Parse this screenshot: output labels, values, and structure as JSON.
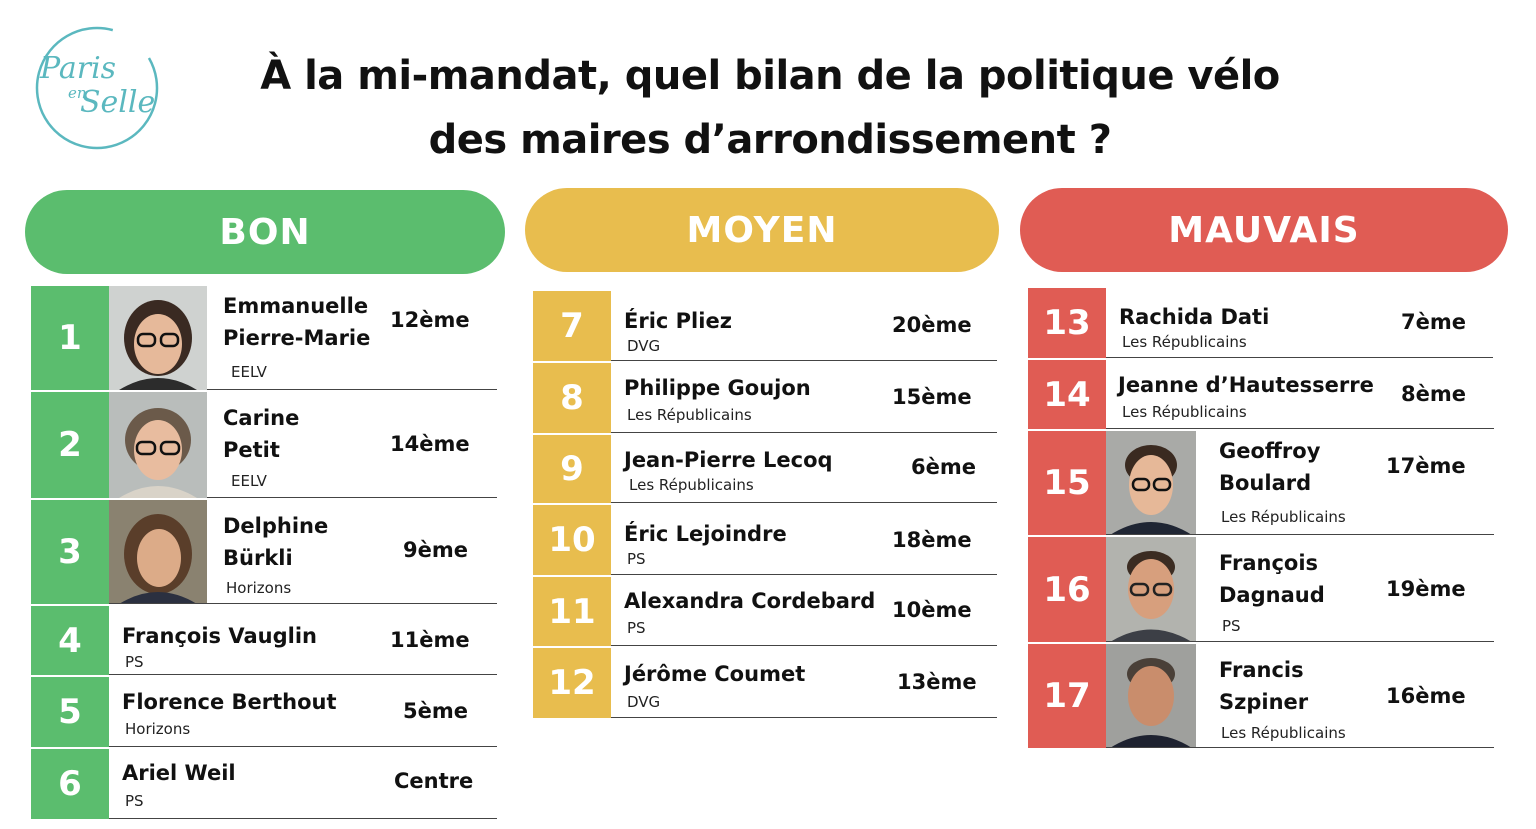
{
  "logo": {
    "line1": "Paris",
    "line2": "en",
    "line3": "Selle",
    "color": "#5bb8bf"
  },
  "title": {
    "line1": "À la mi-mandat, quel bilan de la politique vélo",
    "line2": "des maires d’arrondissement ?"
  },
  "colors": {
    "bon": "#5bbd6e",
    "moyen": "#e8bd4e",
    "mauvais": "#e05c54"
  },
  "columns": [
    {
      "label": "BON",
      "key": "bon",
      "rows": [
        {
          "num": "1",
          "name": [
            "Emmanuelle",
            "Pierre-Marie"
          ],
          "party": "EELV",
          "arr": "12ème",
          "photo": "woman-glasses-portrait"
        },
        {
          "num": "2",
          "name": [
            "Carine",
            "Petit"
          ],
          "party": "EELV",
          "arr": "14ème",
          "photo": "woman-glasses-portrait"
        },
        {
          "num": "3",
          "name": [
            "Delphine",
            "Bürkli"
          ],
          "party": "Horizons",
          "arr": "9ème",
          "photo": "woman-portrait"
        },
        {
          "num": "4",
          "name": [
            "François Vauglin"
          ],
          "party": "PS",
          "arr": "11ème"
        },
        {
          "num": "5",
          "name": [
            "Florence Berthout"
          ],
          "party": "Horizons",
          "arr": "5ème"
        },
        {
          "num": "6",
          "name": [
            "Ariel Weil"
          ],
          "party": "PS",
          "arr": "Centre"
        }
      ]
    },
    {
      "label": "MOYEN",
      "key": "moyen",
      "rows": [
        {
          "num": "7",
          "name": [
            "Éric Pliez"
          ],
          "party": "DVG",
          "arr": "20ème"
        },
        {
          "num": "8",
          "name": [
            "Philippe Goujon"
          ],
          "party": "Les Républicains",
          "arr": "15ème"
        },
        {
          "num": "9",
          "name": [
            "Jean-Pierre Lecoq"
          ],
          "party": "Les Républicains",
          "arr": "6ème"
        },
        {
          "num": "10",
          "name": [
            "Éric Lejoindre"
          ],
          "party": "PS",
          "arr": "18ème"
        },
        {
          "num": "11",
          "name": [
            "Alexandra Cordebard"
          ],
          "party": "PS",
          "arr": "10ème"
        },
        {
          "num": "12",
          "name": [
            "Jérôme Coumet"
          ],
          "party": "DVG",
          "arr": "13ème"
        }
      ]
    },
    {
      "label": "MAUVAIS",
      "key": "mauvais",
      "rows": [
        {
          "num": "13",
          "name": [
            "Rachida Dati"
          ],
          "party": "Les Républicains",
          "arr": "7ème"
        },
        {
          "num": "14",
          "name": [
            "Jeanne d’Hautesserre"
          ],
          "party": "Les Républicains",
          "arr": "8ème"
        },
        {
          "num": "15",
          "name": [
            "Geoffroy",
            "Boulard"
          ],
          "party": "Les Républicains",
          "arr": "17ème",
          "photo": "man-glasses-portrait"
        },
        {
          "num": "16",
          "name": [
            "François",
            "Dagnaud"
          ],
          "party": "PS",
          "arr": "19ème",
          "photo": "man-glasses-portrait"
        },
        {
          "num": "17",
          "name": [
            "Francis",
            "Szpiner"
          ],
          "party": "Les Républicains",
          "arr": "16ème",
          "photo": "man-portrait"
        }
      ]
    }
  ]
}
